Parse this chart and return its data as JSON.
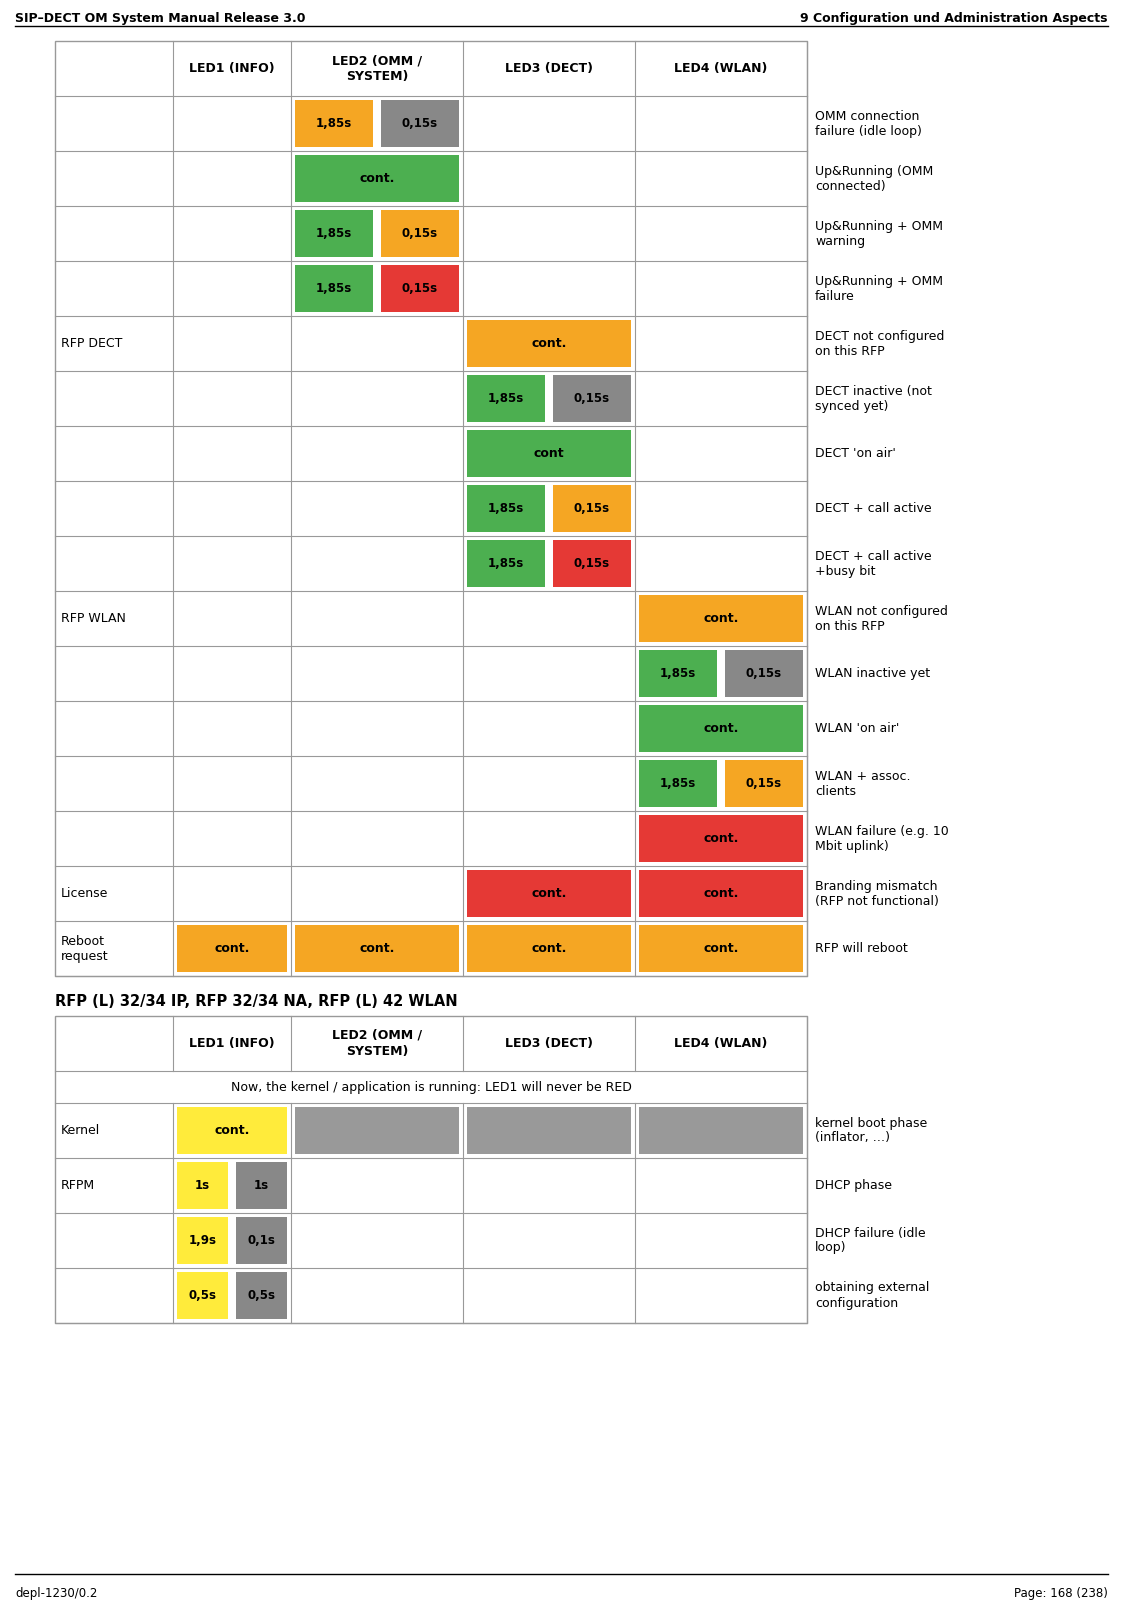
{
  "title_left": "SIP–DECT OM System Manual Release 3.0",
  "title_right": "9 Configuration und Administration Aspects",
  "footer_left": "depl-1230/0.2",
  "footer_right": "Page: 168 (238)",
  "colors": {
    "orange": "#F5A623",
    "green": "#4CAF50",
    "red": "#E53935",
    "gray": "#888888",
    "yellow": "#FFEB3B",
    "white": "#FFFFFF",
    "black": "#000000",
    "border": "#AAAAAA",
    "cell_gray": "#999999"
  },
  "table1_header": [
    "",
    "LED1 (INFO)",
    "LED2 (OMM /\nSYSTEM)",
    "LED3 (DECT)",
    "LED4 (WLAN)",
    ""
  ],
  "table1_rows": [
    {
      "label": "",
      "led1": null,
      "led2": [
        {
          "color": "orange",
          "text": "1,85s"
        },
        {
          "color": "gray",
          "text": "0,15s"
        }
      ],
      "led3": null,
      "led4": null,
      "description": "OMM connection\nfailure (idle loop)"
    },
    {
      "label": "",
      "led1": null,
      "led2": [
        {
          "color": "green",
          "text": "cont.",
          "span": true
        }
      ],
      "led3": null,
      "led4": null,
      "description": "Up&Running (OMM\nconnected)"
    },
    {
      "label": "",
      "led1": null,
      "led2": [
        {
          "color": "green",
          "text": "1,85s"
        },
        {
          "color": "orange",
          "text": "0,15s"
        }
      ],
      "led3": null,
      "led4": null,
      "description": "Up&Running + OMM\nwarning"
    },
    {
      "label": "",
      "led1": null,
      "led2": [
        {
          "color": "green",
          "text": "1,85s"
        },
        {
          "color": "red",
          "text": "0,15s"
        }
      ],
      "led3": null,
      "led4": null,
      "description": "Up&Running + OMM\nfailure"
    },
    {
      "label": "RFP DECT",
      "led1": null,
      "led2": null,
      "led3": [
        {
          "color": "orange",
          "text": "cont.",
          "span": true
        }
      ],
      "led4": null,
      "description": "DECT not configured\non this RFP"
    },
    {
      "label": "",
      "led1": null,
      "led2": null,
      "led3": [
        {
          "color": "green",
          "text": "1,85s"
        },
        {
          "color": "gray",
          "text": "0,15s"
        }
      ],
      "led4": null,
      "description": "DECT inactive (not\nsynced yet)"
    },
    {
      "label": "",
      "led1": null,
      "led2": null,
      "led3": [
        {
          "color": "green",
          "text": "cont",
          "span": true
        }
      ],
      "led4": null,
      "description": "DECT 'on air'"
    },
    {
      "label": "",
      "led1": null,
      "led2": null,
      "led3": [
        {
          "color": "green",
          "text": "1,85s"
        },
        {
          "color": "orange",
          "text": "0,15s"
        }
      ],
      "led4": null,
      "description": "DECT + call active"
    },
    {
      "label": "",
      "led1": null,
      "led2": null,
      "led3": [
        {
          "color": "green",
          "text": "1,85s"
        },
        {
          "color": "red",
          "text": "0,15s"
        }
      ],
      "led4": null,
      "description": "DECT + call active\n+busy bit"
    },
    {
      "label": "RFP WLAN",
      "led1": null,
      "led2": null,
      "led3": null,
      "led4": [
        {
          "color": "orange",
          "text": "cont.",
          "span": true
        }
      ],
      "description": "WLAN not configured\non this RFP"
    },
    {
      "label": "",
      "led1": null,
      "led2": null,
      "led3": null,
      "led4": [
        {
          "color": "green",
          "text": "1,85s"
        },
        {
          "color": "gray",
          "text": "0,15s"
        }
      ],
      "description": "WLAN inactive yet"
    },
    {
      "label": "",
      "led1": null,
      "led2": null,
      "led3": null,
      "led4": [
        {
          "color": "green",
          "text": "cont.",
          "span": true
        }
      ],
      "description": "WLAN 'on air'"
    },
    {
      "label": "",
      "led1": null,
      "led2": null,
      "led3": null,
      "led4": [
        {
          "color": "green",
          "text": "1,85s"
        },
        {
          "color": "orange",
          "text": "0,15s"
        }
      ],
      "description": "WLAN + assoc.\nclients"
    },
    {
      "label": "",
      "led1": null,
      "led2": null,
      "led3": null,
      "led4": [
        {
          "color": "red",
          "text": "cont.",
          "span": true
        }
      ],
      "description": "WLAN failure (e.g. 10\nMbit uplink)"
    },
    {
      "label": "License",
      "led1": null,
      "led2": null,
      "led3": [
        {
          "color": "red",
          "text": "cont.",
          "span": true
        }
      ],
      "led4": [
        {
          "color": "red",
          "text": "cont.",
          "span": true
        }
      ],
      "description": "Branding mismatch\n(RFP not functional)"
    },
    {
      "label": "Reboot\nrequest",
      "led1": [
        {
          "color": "orange",
          "text": "cont.",
          "span": true
        }
      ],
      "led2": [
        {
          "color": "orange",
          "text": "cont.",
          "span": true
        }
      ],
      "led3": [
        {
          "color": "orange",
          "text": "cont.",
          "span": true
        }
      ],
      "led4": [
        {
          "color": "orange",
          "text": "cont.",
          "span": true
        }
      ],
      "description": "RFP will reboot"
    }
  ],
  "table2_section_title": "RFP (L) 32/34 IP, RFP 32/34 NA, RFP (L) 42 WLAN",
  "table2_header": [
    "",
    "LED1 (INFO)",
    "LED2 (OMM /\nSYSTEM)",
    "LED3 (DECT)",
    "LED4 (WLAN)",
    ""
  ],
  "table2_subtitle": "Now, the kernel / application is running: LED1 will never be RED",
  "table2_rows": [
    {
      "label": "Kernel",
      "led1": [
        {
          "color": "yellow",
          "text": "cont.",
          "span": true
        }
      ],
      "led2": "gray_fill",
      "led3": "gray_fill",
      "led4": "gray_fill",
      "description": "kernel boot phase\n(inflator, …)"
    },
    {
      "label": "RFPM",
      "led1": [
        {
          "color": "yellow",
          "text": "1s"
        },
        {
          "color": "gray",
          "text": "1s"
        }
      ],
      "led2": null,
      "led3": null,
      "led4": null,
      "description": "DHCP phase"
    },
    {
      "label": "",
      "led1": [
        {
          "color": "yellow",
          "text": "1,9s"
        },
        {
          "color": "gray",
          "text": "0,1s"
        }
      ],
      "led2": null,
      "led3": null,
      "led4": null,
      "description": "DHCP failure (idle\nloop)"
    },
    {
      "label": "",
      "led1": [
        {
          "color": "yellow",
          "text": "0,5s"
        },
        {
          "color": "gray",
          "text": "0,5s"
        }
      ],
      "led2": null,
      "led3": null,
      "led4": null,
      "description": "obtaining external\nconfiguration"
    }
  ]
}
